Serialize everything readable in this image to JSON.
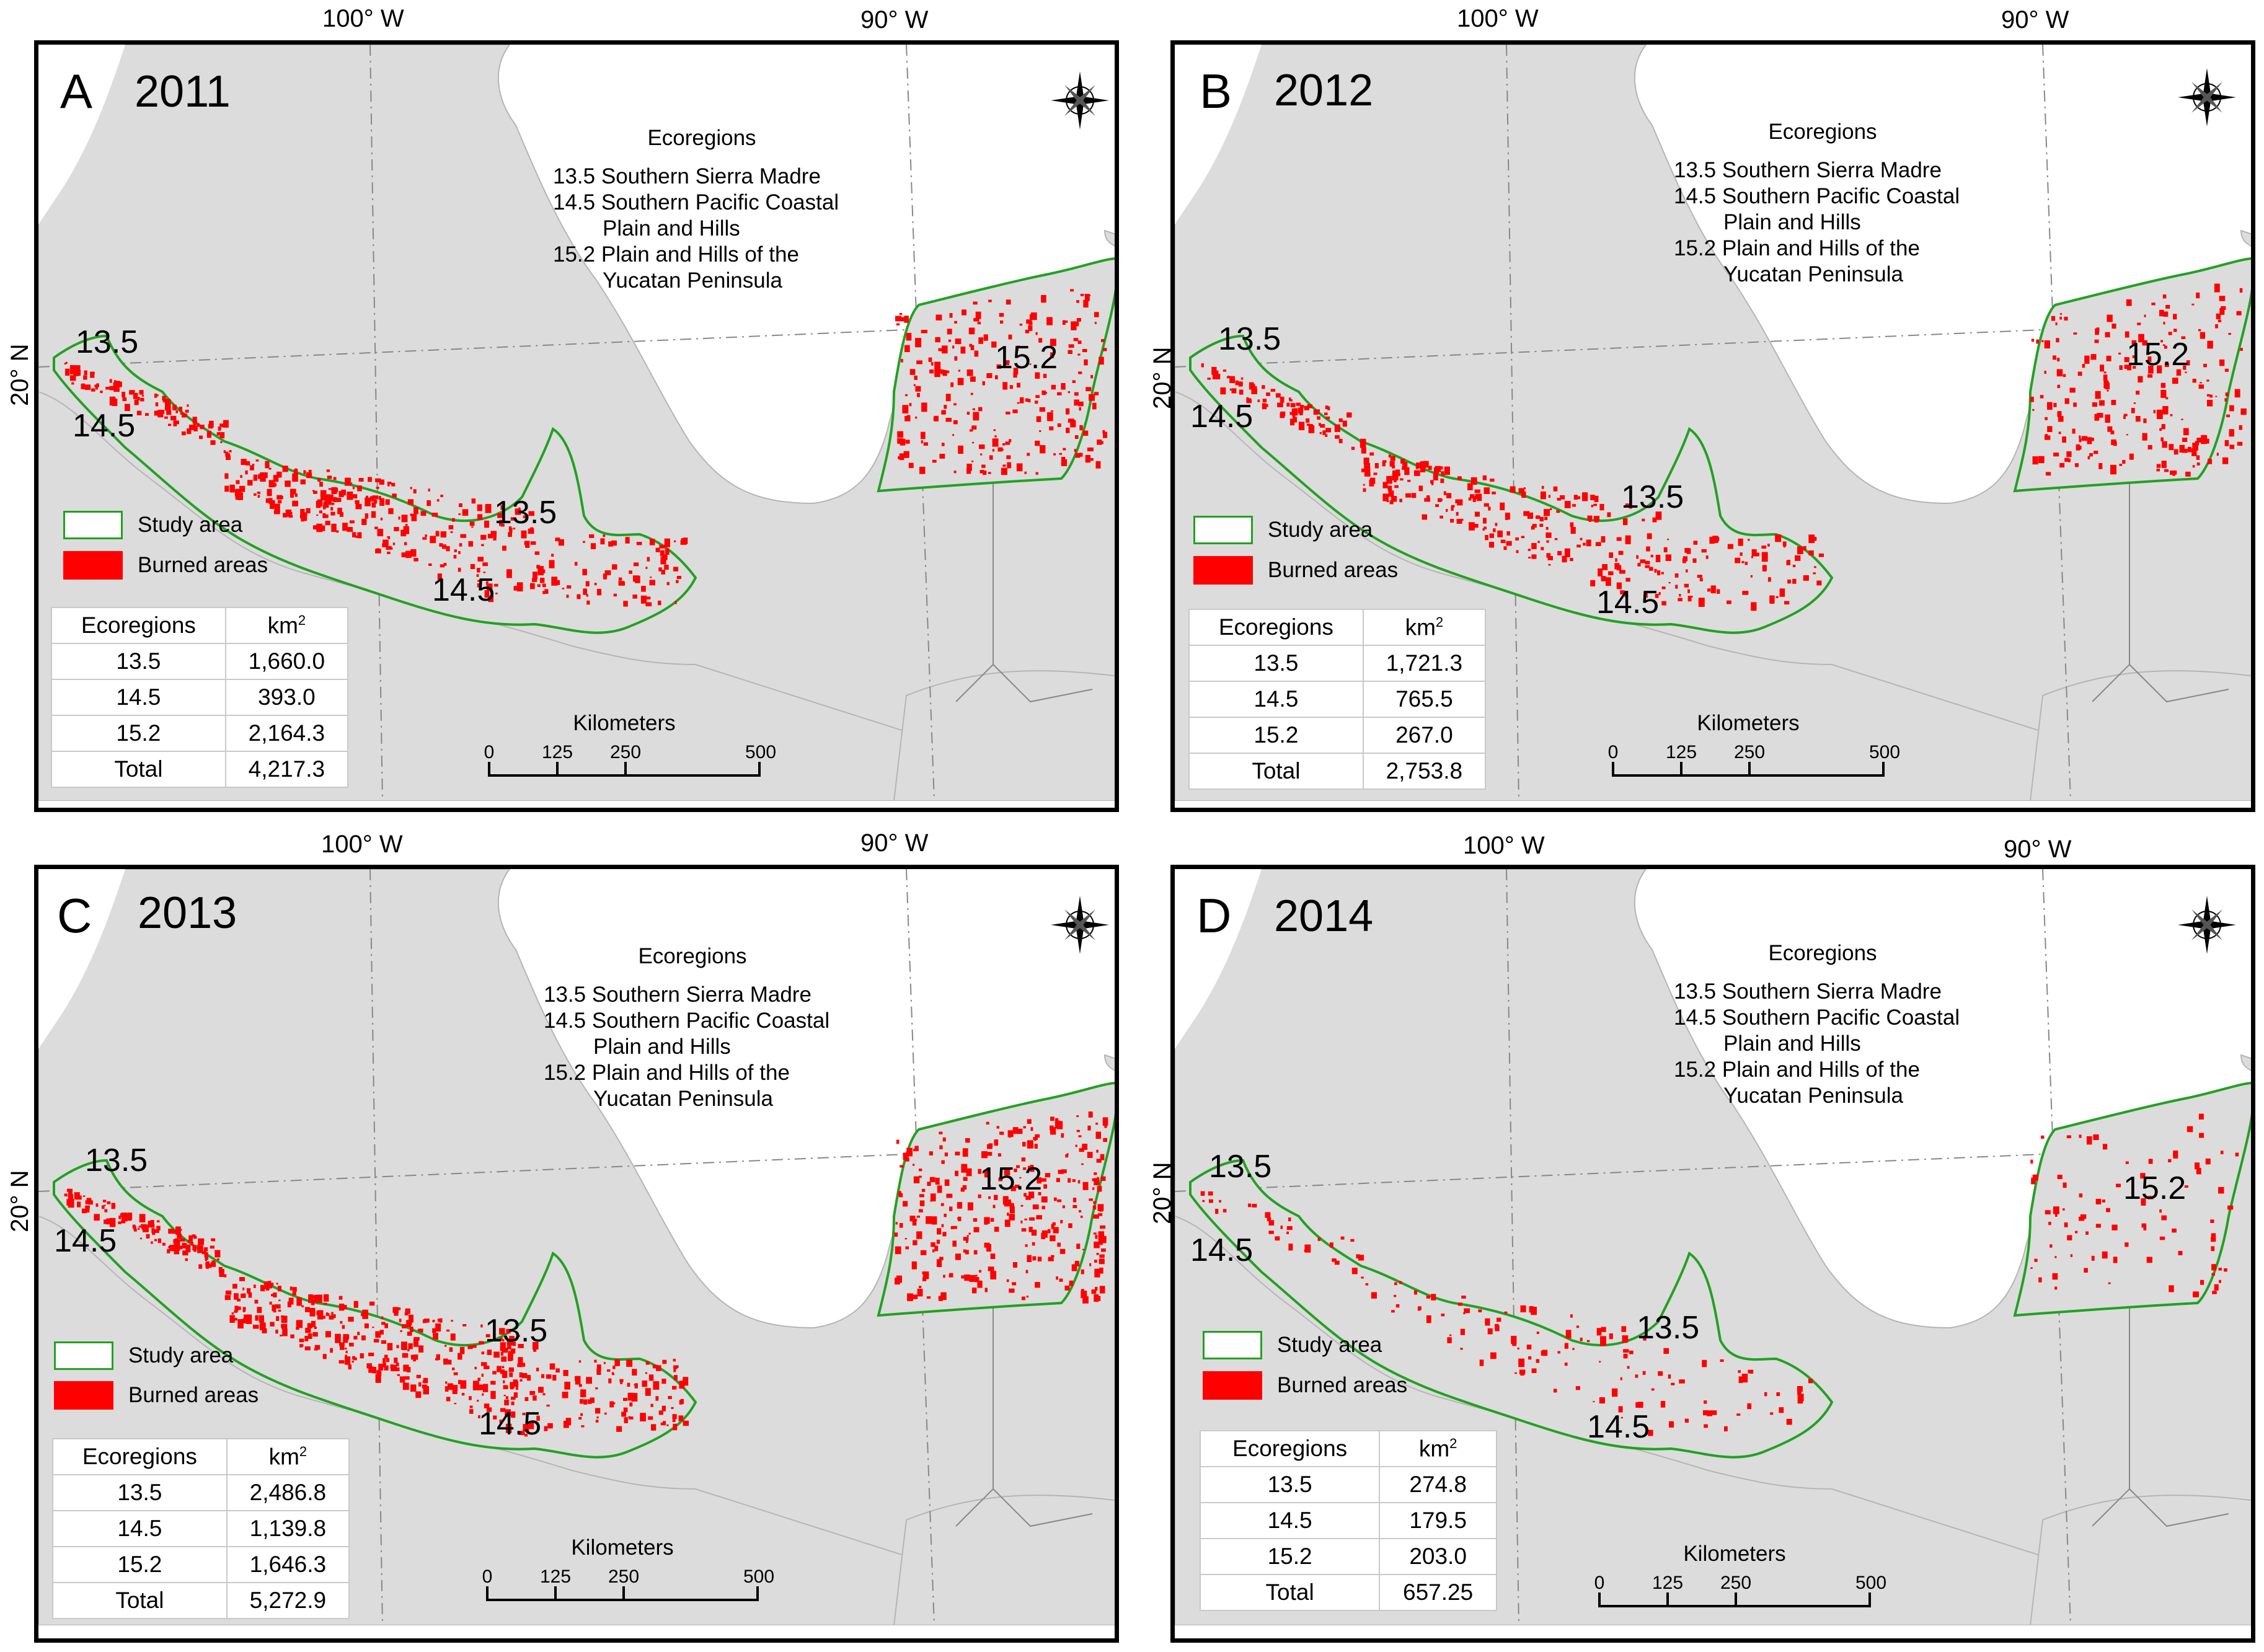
{
  "map_data": {
    "longitude_labels": [
      "100° W",
      "90° W"
    ],
    "latitude_label": "20° N",
    "legend": {
      "study_area": "Study area",
      "burned_areas": "Burned areas"
    },
    "colors": {
      "study_area_outline": "#22a122",
      "burned": "#ff0000",
      "land": "#dcdcdc",
      "sea": "#ffffff"
    },
    "ecoregion_legend": {
      "title": "Ecoregions",
      "line1": "13.5 Southern Sierra Madre",
      "line2": "14.5 Southern Pacific Coastal",
      "line2_cont": "Plain and Hills",
      "line3": "15.2 Plain and Hills of the",
      "line3_cont": "Yucatan Peninsula"
    },
    "region_labels": [
      "13.5",
      "14.5",
      "13.5",
      "14.5",
      "15.2"
    ],
    "table_headers": {
      "ecoregions": "Ecoregions",
      "unit": "km",
      "unit_sup": "2"
    },
    "scale_bar": {
      "title": "Kilometers",
      "ticks": [
        "0",
        "125",
        "250",
        "500"
      ]
    },
    "compass_letters": {
      "n": "N",
      "s": "S",
      "e": "E",
      "w": "W"
    },
    "panels": [
      {
        "letter": "A",
        "year": "2011",
        "rows": [
          {
            "eco": "13.5",
            "km2": "1,660.0"
          },
          {
            "eco": "14.5",
            "km2": "393.0"
          },
          {
            "eco": "15.2",
            "km2": "2,164.3"
          },
          {
            "eco": "Total",
            "km2": "4,217.3"
          }
        ]
      },
      {
        "letter": "B",
        "year": "2012",
        "rows": [
          {
            "eco": "13.5",
            "km2": "1,721.3"
          },
          {
            "eco": "14.5",
            "km2": "765.5"
          },
          {
            "eco": "15.2",
            "km2": "267.0"
          },
          {
            "eco": "Total",
            "km2": "2,753.8"
          }
        ]
      },
      {
        "letter": "C",
        "year": "2013",
        "rows": [
          {
            "eco": "13.5",
            "km2": "2,486.8"
          },
          {
            "eco": "14.5",
            "km2": "1,139.8"
          },
          {
            "eco": "15.2",
            "km2": "1,646.3"
          },
          {
            "eco": "Total",
            "km2": "5,272.9"
          }
        ]
      },
      {
        "letter": "D",
        "year": "2014",
        "rows": [
          {
            "eco": "13.5",
            "km2": "274.8"
          },
          {
            "eco": "14.5",
            "km2": "179.5"
          },
          {
            "eco": "15.2",
            "km2": "203.0"
          },
          {
            "eco": "Total",
            "km2": "657.25"
          }
        ]
      }
    ]
  }
}
